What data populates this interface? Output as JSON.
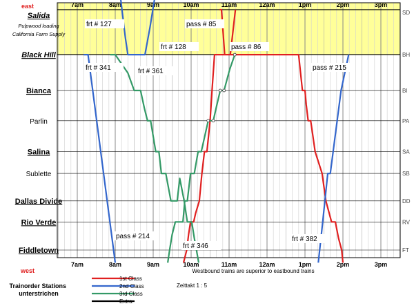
{
  "chart_data": {
    "type": "line",
    "title": "",
    "direction_top": "east",
    "direction_bottom": "west",
    "time_labels": [
      "7am",
      "8am",
      "9am",
      "10am",
      "11am",
      "12am",
      "1pm",
      "2pm",
      "3pm"
    ],
    "x_range_minutes": [
      405,
      945
    ],
    "stations": [
      {
        "name": "Salida",
        "code": "SD",
        "order": true
      },
      {
        "name": "Black Hill",
        "code": "BH",
        "order": true
      },
      {
        "name": "Bianca",
        "code": "BI",
        "order": true
      },
      {
        "name": "Parlin",
        "code": "PA",
        "order": false
      },
      {
        "name": "Salina",
        "code": "SA",
        "order": true
      },
      {
        "name": "Sublette",
        "code": "SB",
        "order": false
      },
      {
        "name": "Dallas Divide",
        "code": "DD",
        "order": true
      },
      {
        "name": "Rio Verde",
        "code": "RV",
        "order": true
      },
      {
        "name": "Fiddletown",
        "code": "FT",
        "order": true
      }
    ],
    "station_positions": {
      "SD": 0,
      "BH": 6.4,
      "BI": 11.5,
      "PA": 15.8,
      "SA": 20.2,
      "SB": 23.3,
      "DD": 27.2,
      "RV": 30.2,
      "FT": 34.2
    },
    "salida_notes": [
      "Pulpwood loading",
      "California Farm Supply"
    ],
    "series": [
      {
        "name": "pass # 85",
        "class": "1st Class",
        "color": "#e02020",
        "points": [
          [
            662,
            6.4
          ],
          [
            670,
            0
          ]
        ]
      },
      {
        "name": "pass # 86",
        "class": "1st Class",
        "color": "#e02020",
        "points": [
          [
            645,
            0
          ],
          [
            648,
            0
          ],
          [
            653,
            6.4
          ]
        ]
      },
      {
        "name": "pass # 215",
        "class": "1st Class",
        "color": "#e02020",
        "points": [
          [
            588,
            36
          ],
          [
            593,
            34.2
          ],
          [
            596,
            32
          ],
          [
            599,
            30.2
          ],
          [
            604,
            30.2
          ],
          [
            607,
            29
          ],
          [
            613,
            27.2
          ],
          [
            617,
            23.3
          ],
          [
            621,
            20.2
          ],
          [
            625,
            20.2
          ],
          [
            630,
            15.8
          ],
          [
            633,
            11.5
          ],
          [
            637,
            6.4
          ],
          [
            770,
            6.4
          ],
          [
            773,
            9
          ],
          [
            776,
            11.5
          ],
          [
            780,
            11.5
          ],
          [
            782,
            13.5
          ],
          [
            785,
            15.8
          ],
          [
            789,
            15.8
          ],
          [
            796,
            20.2
          ],
          [
            807,
            23.3
          ],
          [
            813,
            27.2
          ],
          [
            822,
            30.2
          ],
          [
            828,
            30.2
          ],
          [
            833,
            32.5
          ],
          [
            838,
            34.2
          ],
          [
            840,
            36
          ]
        ]
      },
      {
        "name": "frt # 127",
        "class": "2nd Class",
        "color": "#3366cc",
        "points": [
          [
            488,
            -2
          ],
          [
            496,
            4
          ],
          [
            500,
            6.4
          ],
          [
            527,
            6.4
          ],
          [
            535,
            2.5
          ],
          [
            543,
            -2
          ]
        ]
      },
      {
        "name": "frt # 341",
        "class": "2nd Class",
        "color": "#3366cc",
        "points": [
          [
            430,
            6.4
          ],
          [
            437,
            6.4
          ],
          [
            480,
            36
          ]
        ]
      },
      {
        "name": "frt # 382",
        "class": "2nd Class",
        "color": "#3366cc",
        "points": [
          [
            801,
            36
          ],
          [
            808,
            30.2
          ],
          [
            816,
            23.3
          ],
          [
            820,
            23.3
          ],
          [
            837,
            11.5
          ],
          [
            849,
            6.4
          ]
        ]
      },
      {
        "name": "frt # 361",
        "class": "3rd Class",
        "color": "#339966",
        "points": [
          [
            472,
            6.4
          ],
          [
            480,
            6.4
          ],
          [
            500,
            9
          ],
          [
            510,
            11.5
          ],
          [
            520,
            11.5
          ],
          [
            526,
            14
          ],
          [
            531,
            15.8
          ],
          [
            536,
            15.8
          ],
          [
            544,
            20.2
          ],
          [
            549,
            20.2
          ],
          [
            553,
            23.3
          ],
          [
            560,
            23.3
          ],
          [
            568,
            27.2
          ],
          [
            578,
            27.2
          ],
          [
            582,
            24
          ],
          [
            589,
            27.2
          ],
          [
            594,
            30.2
          ],
          [
            601,
            30.2
          ],
          [
            605,
            32.5
          ],
          [
            612,
            36
          ]
        ]
      },
      {
        "name": "frt # 346",
        "class": "3rd Class",
        "color": "#339966",
        "points": [
          [
            563,
            36
          ],
          [
            566,
            34.2
          ],
          [
            570,
            32
          ],
          [
            575,
            30.2
          ],
          [
            587,
            30.2
          ],
          [
            590,
            27.2
          ],
          [
            594,
            27.2
          ],
          [
            599,
            23.3
          ],
          [
            605,
            23.3
          ],
          [
            611,
            20.2
          ],
          [
            616,
            20.2
          ],
          [
            627,
            15.8
          ],
          [
            635,
            15.8
          ],
          [
            640,
            13.8
          ],
          [
            646,
            11.5
          ],
          [
            652,
            11.5
          ],
          [
            661,
            8.5
          ],
          [
            669,
            6.4
          ]
        ]
      }
    ],
    "train_labels": {
      "frt127": "frt # 127",
      "pass85": "pass # 85",
      "frt128": "frt # 128",
      "pass86": "pass # 86",
      "frt341": "frt # 341",
      "frt361": "frt # 361",
      "pass215": "pass # 215",
      "pass214": "pass # 214",
      "frt346": "frt # 346",
      "frt382": "frt # 382"
    },
    "legend": [
      {
        "label": "1st Class",
        "color": "#e02020"
      },
      {
        "label": "2nd Class",
        "color": "#3366cc"
      },
      {
        "label": "3rd Class",
        "color": "#339966"
      },
      {
        "label": "Extra",
        "color": "#000000"
      }
    ],
    "note": "Westbound trains are superior to eastbound trains",
    "zeittakt": "Zeittakt 1 : 5",
    "station_note": "Trainorder Stations unterstrichen",
    "shaded_zone_color": "#ffff99",
    "grid": true
  }
}
